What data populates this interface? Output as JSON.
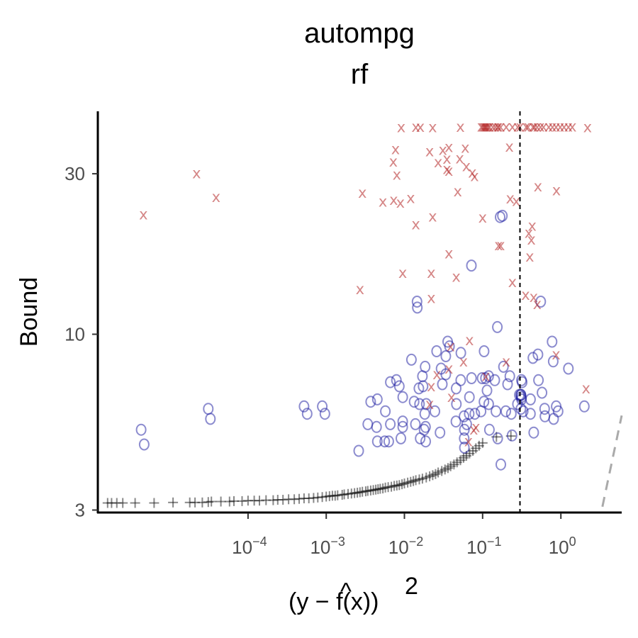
{
  "chart_data": {
    "type": "scatter",
    "title": "autompg",
    "subtitle": "rf",
    "xlabel": "(y − f̂(x))²",
    "ylabel": "Bound",
    "x_scale": "log10",
    "y_scale": "log10",
    "xlim": [
      1.2e-06,
      6
    ],
    "ylim": [
      2.95,
      46
    ],
    "x_ticks": [
      {
        "value": 0.0001,
        "base": "10",
        "exp": "−4"
      },
      {
        "value": 0.001,
        "base": "10",
        "exp": "−3"
      },
      {
        "value": 0.01,
        "base": "10",
        "exp": "−2"
      },
      {
        "value": 0.1,
        "base": "10",
        "exp": "−1"
      },
      {
        "value": 1,
        "base": "10",
        "exp": "0"
      }
    ],
    "y_ticks": [
      {
        "value": 3,
        "label": "3"
      },
      {
        "value": 10,
        "label": "10"
      },
      {
        "value": 30,
        "label": "30"
      }
    ],
    "grid": false,
    "legend": "none",
    "vline": {
      "x": 0.3,
      "style": "dashed",
      "color": "#000000"
    },
    "reference_line": {
      "style": "dashed",
      "color": "#aaaaaa",
      "points": [
        [
          3.4,
          3.07
        ],
        [
          6,
          5.73
        ]
      ]
    },
    "marker_colors": {
      "x": "#b22222",
      "o": "#1a1aa0",
      "plus": "#111111"
    },
    "series": [
      {
        "marker": "x",
        "points": [
          [
            4.6e-06,
            22.7
          ],
          [
            2.2e-05,
            30.1
          ],
          [
            3.9e-05,
            25.6
          ],
          [
            0.0027,
            13.6
          ],
          [
            0.0029,
            26.3
          ],
          [
            0.0053,
            24.8
          ],
          [
            0.0073,
            25.1
          ],
          [
            0.0091,
            41.2
          ],
          [
            0.0077,
            35.5
          ],
          [
            0.0072,
            32.6
          ],
          [
            0.008,
            29.8
          ],
          [
            0.0089,
            24.6
          ],
          [
            0.0095,
            15.2
          ],
          [
            0.012,
            25.4
          ],
          [
            0.014,
            21.2
          ],
          [
            0.014,
            41.3
          ],
          [
            0.016,
            41.3
          ],
          [
            0.021,
            35.0
          ],
          [
            0.023,
            41.2
          ],
          [
            0.023,
            22.4
          ],
          [
            0.022,
            15.2
          ],
          [
            0.022,
            12.8
          ],
          [
            0.022,
            7.0
          ],
          [
            0.021,
            6.2
          ],
          [
            0.026,
            7.6
          ],
          [
            0.027,
            32.4
          ],
          [
            0.031,
            35.3
          ],
          [
            0.035,
            33.2
          ],
          [
            0.035,
            31.0
          ],
          [
            0.037,
            30.6
          ],
          [
            0.037,
            36.0
          ],
          [
            0.037,
            17.4
          ],
          [
            0.039,
            9.2
          ],
          [
            0.04,
            6.5
          ],
          [
            0.037,
            7.9
          ],
          [
            0.046,
            14.8
          ],
          [
            0.048,
            26.6
          ],
          [
            0.051,
            33.3
          ],
          [
            0.052,
            41.3
          ],
          [
            0.057,
            8.3
          ],
          [
            0.06,
            35.8
          ],
          [
            0.062,
            31.6
          ],
          [
            0.068,
            9.6
          ],
          [
            0.074,
            30.2
          ],
          [
            0.079,
            29.5
          ],
          [
            0.077,
            5.2
          ],
          [
            0.082,
            5.3
          ],
          [
            0.066,
            4.8
          ],
          [
            0.096,
            41.4
          ],
          [
            0.1,
            41.4
          ],
          [
            0.104,
            41.4
          ],
          [
            0.107,
            41.4
          ],
          [
            0.11,
            41.4
          ],
          [
            0.113,
            41.4
          ],
          [
            0.118,
            41.4
          ],
          [
            0.123,
            41.4
          ],
          [
            0.135,
            41.4
          ],
          [
            0.145,
            41.4
          ],
          [
            0.155,
            41.4
          ],
          [
            0.16,
            41.4
          ],
          [
            0.17,
            41.4
          ],
          [
            0.2,
            41.4
          ],
          [
            0.24,
            41.4
          ],
          [
            0.28,
            41.4
          ],
          [
            0.3,
            41.4
          ],
          [
            0.36,
            41.4
          ],
          [
            0.38,
            41.4
          ],
          [
            0.44,
            41.4
          ],
          [
            0.46,
            41.4
          ],
          [
            0.5,
            41.4
          ],
          [
            0.55,
            41.4
          ],
          [
            0.6,
            41.4
          ],
          [
            0.7,
            41.4
          ],
          [
            0.78,
            41.4
          ],
          [
            0.87,
            41.4
          ],
          [
            0.98,
            41.4
          ],
          [
            1.1,
            41.4
          ],
          [
            1.25,
            41.4
          ],
          [
            1.4,
            41.4
          ],
          [
            2.2,
            41.2
          ],
          [
            0.11,
            7.5
          ],
          [
            0.1,
            22.2
          ],
          [
            0.16,
            18.4
          ],
          [
            0.17,
            18.4
          ],
          [
            0.22,
            36.1
          ],
          [
            0.24,
            14.3
          ],
          [
            0.2,
            8.3
          ],
          [
            0.225,
            25.3
          ],
          [
            0.27,
            24.9
          ],
          [
            0.355,
            13.1
          ],
          [
            0.42,
            19.1
          ],
          [
            0.39,
            20.0
          ],
          [
            0.43,
            21.0
          ],
          [
            0.4,
            17.0
          ],
          [
            0.45,
            12.9
          ],
          [
            0.5,
            12.3
          ],
          [
            0.51,
            27.5
          ],
          [
            0.88,
            26.8
          ],
          [
            0.87,
            8.7
          ],
          [
            2.1,
            6.9
          ]
        ]
      },
      {
        "marker": "o",
        "points": [
          [
            4.3e-06,
            5.2
          ],
          [
            4.7e-06,
            4.7
          ],
          [
            3.1e-05,
            6.0
          ],
          [
            3.3e-05,
            5.6
          ],
          [
            0.00052,
            6.1
          ],
          [
            0.00057,
            5.8
          ],
          [
            0.00089,
            6.1
          ],
          [
            0.00096,
            5.8
          ],
          [
            0.0026,
            4.5
          ],
          [
            0.0034,
            5.4
          ],
          [
            0.0037,
            6.3
          ],
          [
            0.0044,
            5.3
          ],
          [
            0.0045,
            6.4
          ],
          [
            0.0045,
            4.8
          ],
          [
            0.0056,
            4.8
          ],
          [
            0.0066,
            7.2
          ],
          [
            0.0057,
            5.9
          ],
          [
            0.0066,
            5.4
          ],
          [
            0.0063,
            4.8
          ],
          [
            0.0079,
            7.3
          ],
          [
            0.009,
            4.9
          ],
          [
            0.0086,
            7.0
          ],
          [
            0.0095,
            6.5
          ],
          [
            0.0095,
            5.5
          ],
          [
            0.0095,
            5.3
          ],
          [
            0.0123,
            8.4
          ],
          [
            0.0133,
            6.3
          ],
          [
            0.0138,
            5.4
          ],
          [
            0.0153,
            6.9
          ],
          [
            0.0156,
            6.2
          ],
          [
            0.017,
            7.5
          ],
          [
            0.0173,
            7.0
          ],
          [
            0.0184,
            8.0
          ],
          [
            0.0182,
            5.8
          ],
          [
            0.0178,
            5.2
          ],
          [
            0.0187,
            4.8
          ],
          [
            0.0186,
            5.3
          ],
          [
            0.0159,
            4.9
          ],
          [
            0.0145,
            12.5
          ],
          [
            0.0146,
            12.0
          ],
          [
            0.019,
            6.2
          ],
          [
            0.0245,
            5.9
          ],
          [
            0.0258,
            8.9
          ],
          [
            0.0294,
            7.9
          ],
          [
            0.0305,
            7.1
          ],
          [
            0.0285,
            5.1
          ],
          [
            0.0357,
            9.5
          ],
          [
            0.0377,
            9.2
          ],
          [
            0.0338,
            8.6
          ],
          [
            0.0338,
            7.6
          ],
          [
            0.0459,
            6.9
          ],
          [
            0.0462,
            6.2
          ],
          [
            0.0455,
            5.5
          ],
          [
            0.0526,
            8.8
          ],
          [
            0.0524,
            7.3
          ],
          [
            0.0578,
            5.7
          ],
          [
            0.0584,
            5.2
          ],
          [
            0.0581,
            4.9
          ],
          [
            0.0626,
            5.4
          ],
          [
            0.0584,
            4.6
          ],
          [
            0.0718,
            16.0
          ],
          [
            0.0722,
            7.4
          ],
          [
            0.0677,
            6.5
          ],
          [
            0.0674,
            5.8
          ],
          [
            0.0794,
            5.8
          ],
          [
            0.0984,
            7.4
          ],
          [
            0.1085,
            7.4
          ],
          [
            0.1043,
            8.9
          ],
          [
            0.1039,
            6.3
          ],
          [
            0.0955,
            5.9
          ],
          [
            0.1136,
            6.8
          ],
          [
            0.1194,
            7.5
          ],
          [
            0.1195,
            6.2
          ],
          [
            0.122,
            5.2
          ],
          [
            0.1431,
            7.3
          ],
          [
            0.148,
            5.9
          ],
          [
            0.156,
            4.9
          ],
          [
            0.1541,
            10.5
          ],
          [
            0.1707,
            4.1
          ],
          [
            0.1788,
            22.5
          ],
          [
            0.1672,
            22.3
          ],
          [
            0.1846,
            8.0
          ],
          [
            0.1977,
            5.9
          ],
          [
            0.2085,
            7.1
          ],
          [
            0.2226,
            7.5
          ],
          [
            0.2328,
            5.8
          ],
          [
            0.2376,
            5.0
          ],
          [
            0.2786,
            6.2
          ],
          [
            0.2947,
            6.6
          ],
          [
            0.3138,
            7.3
          ],
          [
            0.32,
            7.2
          ],
          [
            0.3082,
            6.6
          ],
          [
            0.3121,
            6.5
          ],
          [
            0.3087,
            6.6
          ],
          [
            0.3138,
            6.4
          ],
          [
            0.3082,
            6.0
          ],
          [
            0.3304,
            5.9
          ],
          [
            0.4088,
            5.8
          ],
          [
            0.4093,
            6.4
          ],
          [
            0.4386,
            8.5
          ],
          [
            0.4502,
            5.1
          ],
          [
            0.5102,
            8.7
          ],
          [
            0.5172,
            7.3
          ],
          [
            0.5532,
            12.5
          ],
          [
            0.5741,
            6.7
          ],
          [
            0.6204,
            6.0
          ],
          [
            0.6256,
            5.7
          ],
          [
            0.7732,
            9.5
          ],
          [
            0.7985,
            8.3
          ],
          [
            0.8095,
            5.6
          ],
          [
            0.8712,
            6.1
          ],
          [
            0.9224,
            5.9
          ],
          [
            1.2484,
            7.9
          ],
          [
            1.9979,
            6.1
          ]
        ]
      },
      {
        "marker": "plus",
        "points": [
          [
            1.6e-06,
            3.15
          ],
          [
            1.8e-06,
            3.15
          ],
          [
            2.1e-06,
            3.15
          ],
          [
            2.5e-06,
            3.15
          ],
          [
            3.6e-06,
            3.15
          ],
          [
            6.3e-06,
            3.15
          ],
          [
            1.1e-05,
            3.16
          ],
          [
            1.8e-05,
            3.16
          ],
          [
            2.1e-05,
            3.16
          ],
          [
            2.6e-05,
            3.16
          ],
          [
            3.1e-05,
            3.17
          ],
          [
            3.4e-05,
            3.18
          ],
          [
            4.5e-05,
            3.18
          ],
          [
            5.8e-05,
            3.18
          ],
          [
            6.6e-05,
            3.19
          ],
          [
            8.4e-05,
            3.19
          ],
          [
            0.0001,
            3.2
          ],
          [
            0.00012,
            3.2
          ],
          [
            0.00014,
            3.2
          ],
          [
            0.00017,
            3.21
          ],
          [
            0.00021,
            3.21
          ],
          [
            0.00024,
            3.22
          ],
          [
            0.00028,
            3.22
          ],
          [
            0.00033,
            3.23
          ],
          [
            0.00039,
            3.23
          ],
          [
            0.00045,
            3.24
          ],
          [
            0.00052,
            3.25
          ],
          [
            0.0006,
            3.25
          ],
          [
            0.00069,
            3.26
          ],
          [
            0.00078,
            3.27
          ],
          [
            0.00089,
            3.28
          ],
          [
            0.001,
            3.29
          ],
          [
            0.0011,
            3.3
          ],
          [
            0.0012,
            3.31
          ],
          [
            0.0013,
            3.31
          ],
          [
            0.0014,
            3.32
          ],
          [
            0.0016,
            3.33
          ],
          [
            0.0017,
            3.34
          ],
          [
            0.0019,
            3.35
          ],
          [
            0.0021,
            3.36
          ],
          [
            0.0023,
            3.37
          ],
          [
            0.0025,
            3.38
          ],
          [
            0.0027,
            3.39
          ],
          [
            0.0029,
            3.4
          ],
          [
            0.0032,
            3.41
          ],
          [
            0.0034,
            3.42
          ],
          [
            0.0037,
            3.43
          ],
          [
            0.004,
            3.44
          ],
          [
            0.0043,
            3.45
          ],
          [
            0.0046,
            3.46
          ],
          [
            0.0049,
            3.47
          ],
          [
            0.0053,
            3.48
          ],
          [
            0.0057,
            3.5
          ],
          [
            0.0062,
            3.51
          ],
          [
            0.0068,
            3.52
          ],
          [
            0.0074,
            3.54
          ],
          [
            0.008,
            3.55
          ],
          [
            0.0086,
            3.56
          ],
          [
            0.0093,
            3.58
          ],
          [
            0.01,
            3.6
          ],
          [
            0.011,
            3.62
          ],
          [
            0.012,
            3.64
          ],
          [
            0.013,
            3.66
          ],
          [
            0.014,
            3.68
          ],
          [
            0.0155,
            3.7
          ],
          [
            0.017,
            3.72
          ],
          [
            0.019,
            3.75
          ],
          [
            0.021,
            3.78
          ],
          [
            0.023,
            3.81
          ],
          [
            0.025,
            3.84
          ],
          [
            0.027,
            3.88
          ],
          [
            0.03,
            3.92
          ],
          [
            0.033,
            3.96
          ],
          [
            0.036,
            4.0
          ],
          [
            0.039,
            4.05
          ],
          [
            0.043,
            4.1
          ],
          [
            0.047,
            4.16
          ],
          [
            0.052,
            4.22
          ],
          [
            0.057,
            4.29
          ],
          [
            0.062,
            4.35
          ],
          [
            0.068,
            4.42
          ],
          [
            0.075,
            4.5
          ],
          [
            0.082,
            4.58
          ],
          [
            0.09,
            4.66
          ],
          [
            0.1,
            4.75
          ],
          [
            0.15,
            4.95
          ],
          [
            0.23,
            4.98
          ]
        ]
      }
    ]
  }
}
